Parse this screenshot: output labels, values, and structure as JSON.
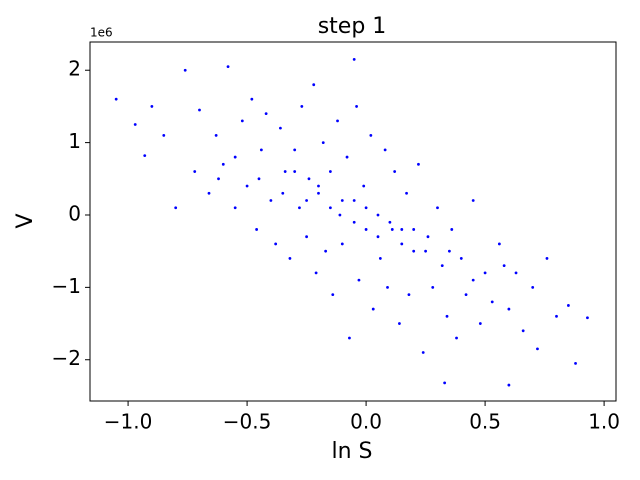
{
  "chart_data": {
    "type": "scatter",
    "title": "step 1",
    "x_label": "ln S",
    "y_label": "V",
    "y_offset_label": "1e6",
    "color": "#0000ff",
    "xlim": [
      -1.16,
      1.05
    ],
    "ylim": [
      -2.57,
      2.39
    ],
    "xticks": [
      {
        "value": -1,
        "label": "−1.0"
      },
      {
        "value": -0.5,
        "label": "−0.5"
      },
      {
        "value": 0,
        "label": "0.0"
      },
      {
        "value": 0.5,
        "label": "0.5"
      },
      {
        "value": 1,
        "label": "1.0"
      }
    ],
    "yticks": [
      {
        "value": -2,
        "label": "−2"
      },
      {
        "value": -1,
        "label": "−1"
      },
      0,
      1,
      2
    ],
    "grid": false,
    "x": [
      -1.05,
      -0.97,
      -0.93,
      -0.9,
      -0.85,
      -0.8,
      -0.76,
      -0.72,
      -0.7,
      -0.66,
      -0.63,
      -0.6,
      -0.58,
      -0.55,
      -0.52,
      -0.5,
      -0.48,
      -0.46,
      -0.44,
      -0.42,
      -0.4,
      -0.38,
      -0.36,
      -0.34,
      -0.32,
      -0.3,
      -0.28,
      -0.27,
      -0.25,
      -0.24,
      -0.22,
      -0.21,
      -0.2,
      -0.18,
      -0.17,
      -0.15,
      -0.14,
      -0.12,
      -0.11,
      -0.1,
      -0.08,
      -0.07,
      -0.05,
      -0.04,
      -0.03,
      -0.01,
      0.0,
      0.02,
      0.03,
      0.05,
      0.06,
      0.08,
      0.09,
      0.11,
      0.12,
      0.14,
      0.15,
      0.17,
      0.18,
      0.2,
      0.22,
      0.24,
      0.26,
      0.28,
      0.3,
      0.32,
      0.34,
      0.36,
      0.38,
      0.4,
      0.42,
      0.45,
      0.48,
      0.5,
      0.53,
      0.56,
      0.6,
      0.63,
      0.66,
      0.7,
      0.72,
      0.76,
      0.8,
      0.85,
      0.88,
      0.93,
      -0.05,
      0.33,
      -0.35,
      -0.25,
      -0.15,
      -0.05,
      0.05,
      0.15,
      0.25,
      -0.45,
      0.35,
      -0.3,
      -0.2,
      -0.1,
      0.0,
      0.1,
      0.2,
      -0.55,
      0.45,
      -0.62,
      0.58,
      0.6
    ],
    "values": [
      1.6,
      1.25,
      0.82,
      1.5,
      1.1,
      0.1,
      2.0,
      0.6,
      1.45,
      0.3,
      1.1,
      0.7,
      2.05,
      0.1,
      1.3,
      0.4,
      1.6,
      -0.2,
      0.9,
      1.4,
      0.2,
      -0.4,
      1.2,
      0.6,
      -0.6,
      0.9,
      0.1,
      1.5,
      -0.3,
      0.5,
      1.8,
      -0.8,
      0.3,
      1.0,
      -0.5,
      0.6,
      -1.1,
      1.3,
      0.0,
      -0.4,
      0.8,
      -1.7,
      0.2,
      1.5,
      -0.9,
      0.4,
      -0.2,
      1.1,
      -1.3,
      0.0,
      -0.6,
      0.9,
      -1.0,
      -0.2,
      0.6,
      -1.5,
      -0.4,
      0.3,
      -1.1,
      -0.5,
      0.7,
      -1.9,
      -0.3,
      -1.0,
      0.1,
      -0.7,
      -1.4,
      -0.2,
      -1.7,
      -0.6,
      -1.1,
      0.2,
      -1.5,
      -0.8,
      -1.2,
      -0.4,
      -1.3,
      -0.8,
      -1.6,
      -1.0,
      -1.85,
      -0.6,
      -1.4,
      -1.25,
      -2.05,
      -1.42,
      2.15,
      -2.32,
      0.3,
      0.2,
      0.1,
      -0.1,
      -0.3,
      -0.2,
      -0.5,
      0.5,
      -0.5,
      0.6,
      0.4,
      0.2,
      0.1,
      -0.1,
      -0.2,
      0.8,
      -0.9,
      0.5,
      -0.7,
      -2.35
    ]
  }
}
